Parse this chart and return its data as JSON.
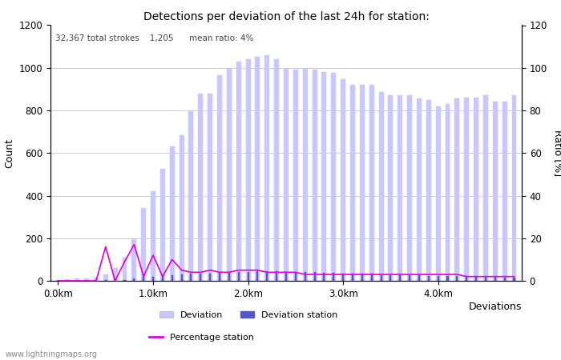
{
  "title": "Detections per deviation of the last 24h for station:",
  "subtitle": "32,367 total strokes    1,205      mean ratio: 4%",
  "xlabel": "Deviations",
  "ylabel_left": "Count",
  "ylabel_right": "Ratio [%]",
  "ylim_left": [
    0,
    1200
  ],
  "ylim_right": [
    0,
    120
  ],
  "yticks_left": [
    0,
    200,
    400,
    600,
    800,
    1000,
    1200
  ],
  "yticks_right": [
    0,
    20,
    40,
    60,
    80,
    100,
    120
  ],
  "xtick_labels": [
    "0.0km",
    "1.0km",
    "2.0km",
    "3.0km",
    "4.0km"
  ],
  "xtick_positions": [
    0,
    10,
    20,
    30,
    40
  ],
  "watermark": "www.lightningmaps.org",
  "bar_width": 0.5,
  "deviation_color": "#c8c8ff",
  "deviation_station_color": "#5555cc",
  "percentage_color": "#dd00dd",
  "deviation_values": [
    5,
    8,
    10,
    12,
    15,
    30,
    60,
    110,
    195,
    340,
    420,
    525,
    630,
    685,
    795,
    880,
    880,
    965,
    1000,
    1030,
    1040,
    1050,
    1060,
    1040,
    1000,
    990,
    1000,
    990,
    980,
    975,
    945,
    920,
    920,
    920,
    885,
    870,
    870,
    870,
    855,
    850,
    820,
    830,
    855,
    860,
    860,
    870,
    840,
    840,
    870
  ],
  "deviation_station_values": [
    0,
    0,
    0,
    0,
    0,
    2,
    3,
    5,
    10,
    18,
    20,
    25,
    28,
    30,
    32,
    35,
    35,
    38,
    40,
    42,
    43,
    44,
    45,
    44,
    42,
    40,
    40,
    40,
    38,
    37,
    35,
    33,
    33,
    32,
    28,
    28,
    27,
    27,
    25,
    24,
    23,
    22,
    22,
    21,
    20,
    18,
    18,
    16,
    16
  ],
  "percentage_values": [
    0,
    0,
    0,
    0,
    0,
    16,
    0,
    9,
    17,
    2,
    12,
    2,
    10,
    5,
    4,
    4,
    5,
    4,
    4,
    5,
    5,
    5,
    4,
    4,
    4,
    4,
    3,
    3,
    3,
    3,
    3,
    3,
    3,
    3,
    3,
    3,
    3,
    3,
    3,
    3,
    3,
    3,
    3,
    2,
    2,
    2,
    2,
    2,
    2
  ]
}
